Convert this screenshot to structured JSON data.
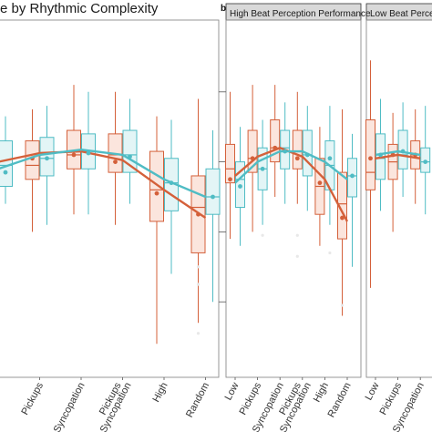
{
  "figure": {
    "title": "e by Rhythmic Complexity",
    "panel_b_letter": "b"
  },
  "colors": {
    "series_a": "#d4603a",
    "series_b": "#4fbcc4",
    "series_a_fill": "#fbe5dd",
    "series_b_fill": "#e3f5f6",
    "strip_fill": "#d9d9d9",
    "panel_border": "#8c8c8c"
  },
  "chart_data": [
    {
      "panel": "a",
      "type": "box",
      "title": "e by Rhythmic Complexity",
      "categories": [
        "",
        "Pickups",
        "Syncopation",
        "Pickups & Syncopation",
        "High",
        "Random"
      ],
      "ylim": [
        0,
        100
      ],
      "series": [
        {
          "color": "#d4603a",
          "boxes": [
            {
              "low": 48,
              "q1": 55,
              "median": 60,
              "q3": 67,
              "high": 72
            },
            {
              "low": 40,
              "q1": 55,
              "median": 59,
              "q3": 66,
              "high": 75
            },
            {
              "low": 45,
              "q1": 58,
              "median": 62,
              "q3": 69,
              "high": 82
            },
            {
              "low": 42,
              "q1": 57,
              "median": 62,
              "q3": 68,
              "high": 80
            },
            {
              "low": 8,
              "q1": 43,
              "median": 52,
              "q3": 63,
              "high": 73
            },
            {
              "low": 14,
              "q1": 34,
              "median": 47,
              "q3": 56,
              "high": 78
            }
          ],
          "means": [
            57,
            61,
            62,
            60,
            51,
            45
          ],
          "trend": [
            60,
            62.5,
            63,
            60.5,
            52,
            44
          ],
          "outliers": [
            [
              5,
              30
            ],
            [
              5,
              25
            ],
            [
              5,
              11
            ]
          ]
        },
        {
          "color": "#4fbcc4",
          "boxes": [
            {
              "low": 48,
              "q1": 53,
              "median": 59,
              "q3": 66,
              "high": 73
            },
            {
              "low": 42,
              "q1": 56,
              "median": 61,
              "q3": 67,
              "high": 76
            },
            {
              "low": 45,
              "q1": 58,
              "median": 63,
              "q3": 68,
              "high": 80
            },
            {
              "low": 48,
              "q1": 57,
              "median": 62,
              "q3": 69,
              "high": 78
            },
            {
              "low": 28,
              "q1": 46,
              "median": 54,
              "q3": 61,
              "high": 72
            },
            {
              "low": 20,
              "q1": 45,
              "median": 50,
              "q3": 58,
              "high": 69
            }
          ],
          "means": [
            57,
            61,
            62.5,
            61.5,
            54,
            50
          ],
          "trend": [
            58,
            62,
            63.5,
            62,
            55,
            50
          ],
          "outliers": []
        }
      ]
    },
    {
      "panel": "b",
      "type": "box",
      "title": "High Beat Perception Performance",
      "categories": [
        "Low",
        "Pickups",
        "Syncopation",
        "Pickups & Syncopation",
        "High",
        "Random"
      ],
      "ylim": [
        0,
        100
      ],
      "series": [
        {
          "color": "#d4603a",
          "boxes": [
            {
              "low": 38,
              "q1": 54,
              "median": 58,
              "q3": 65,
              "high": 80
            },
            {
              "low": 40,
              "q1": 57,
              "median": 61,
              "q3": 69,
              "high": 82
            },
            {
              "low": 50,
              "q1": 60,
              "median": 64,
              "q3": 72,
              "high": 82
            },
            {
              "low": 48,
              "q1": 58,
              "median": 63,
              "q3": 69,
              "high": 80
            },
            {
              "low": 36,
              "q1": 45,
              "median": 53,
              "q3": 61,
              "high": 70
            },
            {
              "low": 16,
              "q1": 38,
              "median": 48,
              "q3": 57,
              "high": 75
            }
          ],
          "means": [
            55,
            61,
            64,
            61,
            54,
            44
          ],
          "trend": [
            56,
            61.5,
            64,
            61.5,
            55,
            43
          ],
          "outliers": [
            [
              5,
              19
            ],
            [
              3,
              39
            ],
            [
              3,
              33
            ]
          ]
        },
        {
          "color": "#4fbcc4",
          "boxes": [
            {
              "low": 36,
              "q1": 47,
              "median": 55,
              "q3": 60,
              "high": 70
            },
            {
              "low": 42,
              "q1": 52,
              "median": 58,
              "q3": 64,
              "high": 72
            },
            {
              "low": 48,
              "q1": 58,
              "median": 64,
              "q3": 69,
              "high": 77
            },
            {
              "low": 46,
              "q1": 56,
              "median": 62,
              "q3": 69,
              "high": 76
            },
            {
              "low": 42,
              "q1": 52,
              "median": 59,
              "q3": 66,
              "high": 76
            },
            {
              "low": 30,
              "q1": 50,
              "median": 56,
              "q3": 61,
              "high": 68
            }
          ],
          "means": [
            53,
            58,
            63,
            62,
            61,
            56
          ],
          "trend": [
            54,
            60,
            63,
            63,
            60,
            55
          ],
          "outliers": [
            [
              1,
              39
            ],
            [
              4,
              34
            ]
          ]
        }
      ]
    },
    {
      "panel": "c",
      "type": "box",
      "title": "Low Beat Perception Performance",
      "categories": [
        "Low",
        "Pickups",
        "Syncopation"
      ],
      "ylim": [
        0,
        100
      ],
      "series": [
        {
          "color": "#d4603a",
          "boxes": [
            {
              "low": 24,
              "q1": 52,
              "median": 57,
              "q3": 72,
              "high": 89
            },
            {
              "low": 40,
              "q1": 55,
              "median": 60,
              "q3": 65,
              "high": 74
            },
            {
              "low": 48,
              "q1": 58,
              "median": 62,
              "q3": 66,
              "high": 75
            }
          ],
          "means": [
            61,
            62,
            62
          ],
          "trend": [
            61,
            62,
            61
          ],
          "outliers": []
        },
        {
          "color": "#4fbcc4",
          "boxes": [
            {
              "low": 46,
              "q1": 55,
              "median": 61,
              "q3": 68,
              "high": 78
            },
            {
              "low": 50,
              "q1": 58,
              "median": 62,
              "q3": 69,
              "high": 77
            },
            {
              "low": 45,
              "q1": 57,
              "median": 60,
              "q3": 64,
              "high": 76
            }
          ],
          "means": [
            62,
            63,
            60
          ],
          "trend": [
            62,
            63,
            62
          ],
          "outliers": []
        }
      ]
    }
  ]
}
